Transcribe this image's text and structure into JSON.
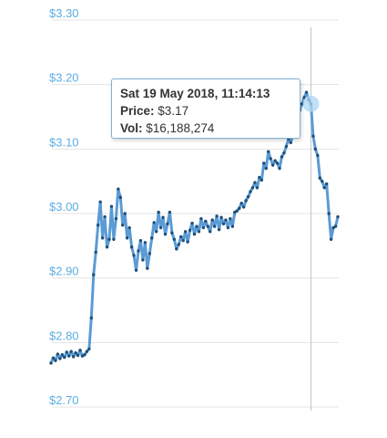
{
  "chart_data": {
    "type": "line",
    "ylim": [
      2.7,
      3.3
    ],
    "yticks": [
      "$3.30",
      "$3.20",
      "$3.10",
      "$3.00",
      "$2.90",
      "$2.80",
      "$2.70"
    ],
    "ytick_values": [
      3.3,
      3.2,
      3.1,
      3.0,
      2.9,
      2.8,
      2.7
    ],
    "grid": true,
    "series": [
      {
        "values": [
          2.768,
          2.776,
          2.772,
          2.782,
          2.775,
          2.781,
          2.777,
          2.785,
          2.779,
          2.786,
          2.778,
          2.784,
          2.78,
          2.788,
          2.779,
          2.781,
          2.786,
          2.79,
          2.838,
          2.905,
          2.94,
          2.982,
          3.018,
          2.962,
          2.995,
          2.948,
          2.96,
          3.011,
          2.96,
          2.992,
          3.038,
          3.025,
          2.982,
          3.0,
          2.962,
          2.978,
          2.948,
          2.935,
          2.912,
          2.942,
          2.958,
          2.928,
          2.955,
          2.915,
          2.938,
          2.962,
          2.986,
          2.972,
          3.002,
          2.978,
          2.994,
          2.968,
          2.984,
          3.002,
          2.97,
          2.96,
          2.945,
          2.952,
          2.964,
          2.958,
          2.972,
          2.956,
          2.974,
          2.985,
          2.968,
          2.98,
          2.972,
          2.992,
          2.978,
          2.988,
          2.98,
          2.972,
          2.99,
          2.98,
          2.996,
          2.975,
          2.994,
          2.984,
          2.99,
          2.978,
          2.992,
          2.98,
          3.002,
          3.004,
          3.008,
          3.016,
          3.01,
          3.02,
          3.026,
          3.034,
          3.04,
          3.048,
          3.04,
          3.056,
          3.052,
          3.078,
          3.07,
          3.096,
          3.085,
          3.075,
          3.082,
          3.078,
          3.07,
          3.088,
          3.094,
          3.104,
          3.116,
          3.11,
          3.124,
          3.14,
          3.15,
          3.16,
          3.17,
          3.18,
          3.188,
          3.176,
          3.17,
          3.12,
          3.1,
          3.09,
          3.055,
          3.05,
          3.04,
          3.046,
          3.0,
          2.96,
          2.978,
          2.98,
          2.995
        ],
        "color": "#5b9bd5",
        "marker_color": "#1e4f78"
      }
    ],
    "crosshair_index": 116,
    "tooltip": {
      "date": "Sat 19 May 2018, 11:14:13",
      "price_label": "Price:",
      "price_value": "$3.17",
      "vol_label": "Vol:",
      "vol_value": "$16,188,274"
    },
    "colors": {
      "tick_label": "#5dade2",
      "grid": "#e3e3e3",
      "crosshair": "#b8c4cc",
      "highlight": "#aed6f1"
    }
  }
}
